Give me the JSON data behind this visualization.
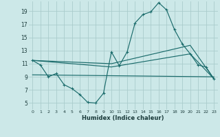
{
  "xlabel": "Humidex (Indice chaleur)",
  "bg_color": "#cce8e8",
  "grid_color": "#aacccc",
  "line_color": "#1a6b6b",
  "xlim": [
    -0.5,
    23.5
  ],
  "ylim": [
    4.0,
    20.5
  ],
  "xticks": [
    0,
    1,
    2,
    3,
    4,
    5,
    6,
    7,
    8,
    9,
    10,
    11,
    12,
    13,
    14,
    15,
    16,
    17,
    18,
    19,
    20,
    21,
    22,
    23
  ],
  "yticks": [
    5,
    7,
    9,
    11,
    13,
    15,
    17,
    19
  ],
  "line1_x": [
    0,
    1,
    2,
    3,
    4,
    5,
    6,
    7,
    8,
    9,
    10,
    11,
    12,
    13,
    14,
    15,
    16,
    17,
    18,
    19,
    20,
    21,
    22,
    23
  ],
  "line1_y": [
    11.5,
    10.8,
    9.0,
    9.5,
    7.8,
    7.2,
    6.3,
    5.1,
    5.0,
    6.5,
    12.8,
    10.7,
    12.8,
    17.2,
    18.5,
    18.9,
    20.3,
    19.2,
    16.2,
    14.0,
    12.5,
    10.8,
    10.5,
    8.7
  ],
  "line2_x": [
    0,
    10,
    20,
    23
  ],
  "line2_y": [
    11.5,
    11.0,
    13.8,
    8.7
  ],
  "line3_x": [
    0,
    10,
    20,
    23
  ],
  "line3_y": [
    11.5,
    10.5,
    12.5,
    8.7
  ],
  "line4_x": [
    0,
    23
  ],
  "line4_y": [
    9.3,
    9.0
  ]
}
